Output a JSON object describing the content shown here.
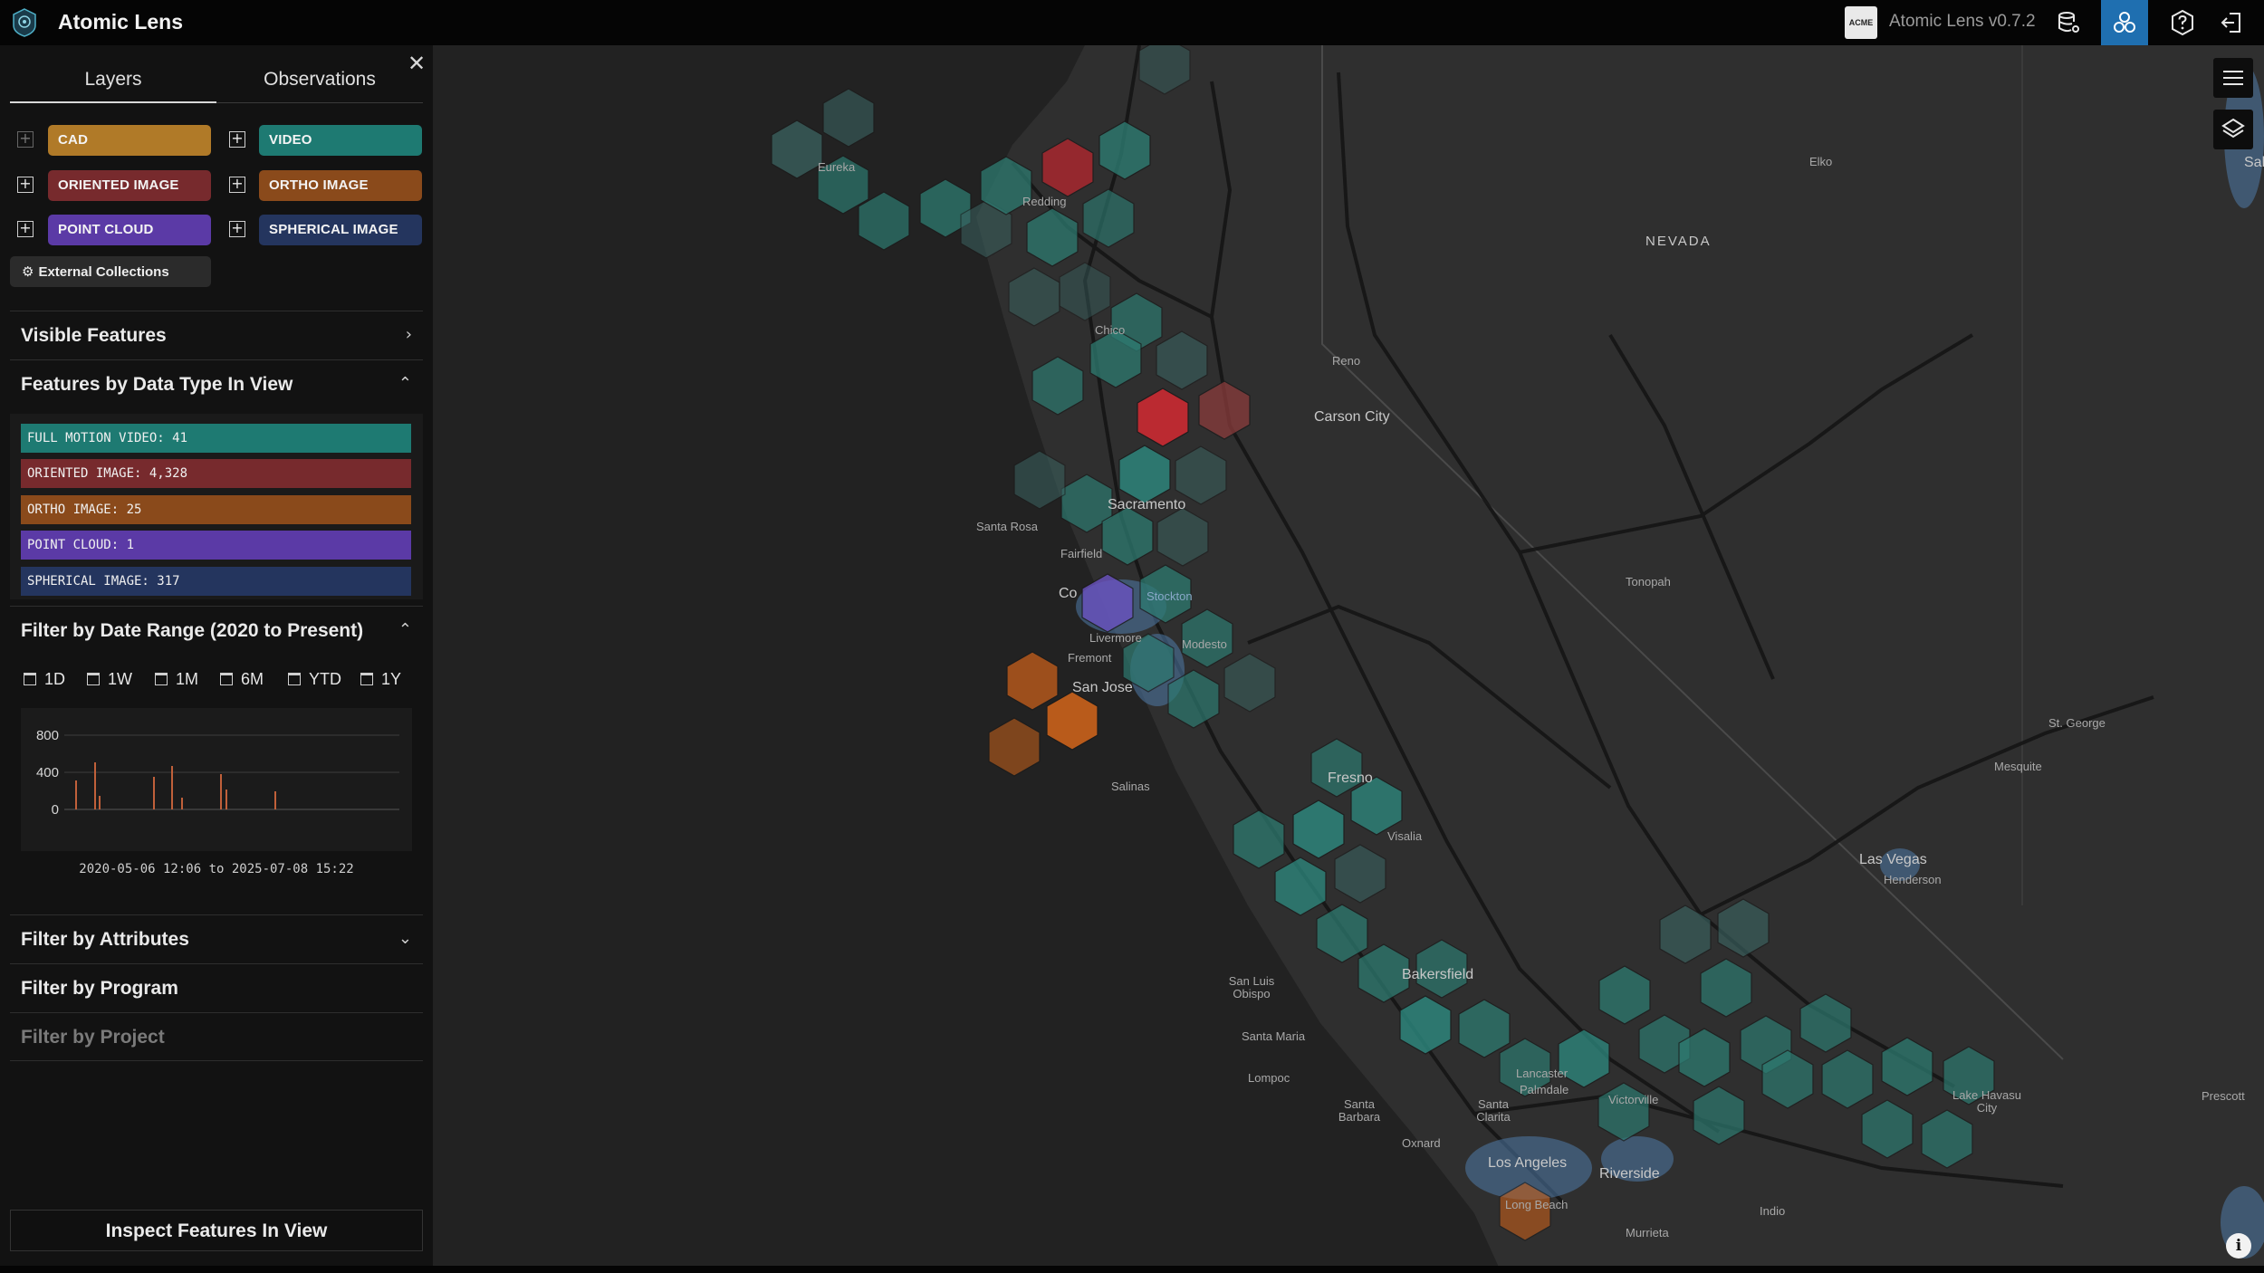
{
  "app": {
    "title": "Atomic Lens",
    "version": "Atomic Lens v0.7.2",
    "acme_label": "ACME",
    "accent": "#1f6fb0"
  },
  "topbar_icons": [
    "database-settings-icon",
    "collections-icon",
    "help-icon",
    "logout-icon"
  ],
  "tabs": {
    "layers": "Layers",
    "observations": "Observations"
  },
  "layers": [
    {
      "label": "CAD",
      "color": "#b07a28"
    },
    {
      "label": "VIDEO",
      "color": "#1e7a72"
    },
    {
      "label": "ORIENTED IMAGE",
      "color": "#772a2d"
    },
    {
      "label": "ORTHO IMAGE",
      "color": "#8a4a1b"
    },
    {
      "label": "POINT CLOUD",
      "color": "#5b3aa6"
    },
    {
      "label": "SPHERICAL IMAGE",
      "color": "#24355e"
    }
  ],
  "external_collections": "External Collections",
  "sections": {
    "visible_features": "Visible Features",
    "features_by_type": "Features by Data Type In View",
    "date_range": "Filter by Date Range (2020 to Present)",
    "attributes": "Filter by Attributes",
    "program": "Filter by Program",
    "project": "Filter by Project"
  },
  "feature_types": [
    {
      "label": "FULL MOTION VIDEO: 41",
      "color": "#1e7a72"
    },
    {
      "label": "ORIENTED IMAGE: 4,328",
      "color": "#772a2d"
    },
    {
      "label": "ORTHO IMAGE: 25",
      "color": "#8a4a1b"
    },
    {
      "label": "POINT CLOUD: 1",
      "color": "#5b3aa6"
    },
    {
      "label": "SPHERICAL IMAGE: 317",
      "color": "#24355e"
    }
  ],
  "date_buttons": [
    "1D",
    "1W",
    "1M",
    "6M",
    "YTD",
    "1Y"
  ],
  "histogram": {
    "ticks": [
      "800",
      "400",
      "0"
    ],
    "range_text": "2020-05-06 12:06 to 2025-07-08 15:22",
    "bar_color": "#c0603a"
  },
  "inspect_button": "Inspect Features In View",
  "map": {
    "labels": {
      "nevada": "NEVADA",
      "eureka": "Eureka",
      "redding": "Redding",
      "chico": "Chico",
      "reno": "Reno",
      "carson_city": "Carson City",
      "elko": "Elko",
      "sacramento": "Sacramento",
      "santa_rosa": "Santa Rosa",
      "fairfield": "Fairfield",
      "concord": "Co",
      "stockton": "Stockton",
      "livermore": "Livermore",
      "modesto": "Modesto",
      "fremont": "Fremont",
      "san_jose": "San Jose",
      "salinas": "Salinas",
      "tonopah": "Tonopah",
      "fresno": "Fresno",
      "visalia": "Visalia",
      "st_george": "St. George",
      "mesquite": "Mesquite",
      "las_vegas": "Las Vegas",
      "henderson": "Henderson",
      "san_luis_obispo": "San Luis Obispo",
      "bakersfield": "Bakersfield",
      "santa_maria": "Santa Maria",
      "lompoc": "Lompoc",
      "lancaster": "Lancaster",
      "palmdale": "Palmdale",
      "victorville": "Victorville",
      "lake_havasu": "Lake Havasu City",
      "prescott": "Prescott",
      "santa_barbara": "Santa Barbara",
      "santa_clarita": "Santa Clarita",
      "oxnard": "Oxnard",
      "los_angeles": "Los Angeles",
      "riverside": "Riverside",
      "long_beach": "Long Beach",
      "indio": "Indio",
      "murrieta": "Murrieta",
      "salt_lake": "Sal"
    }
  }
}
